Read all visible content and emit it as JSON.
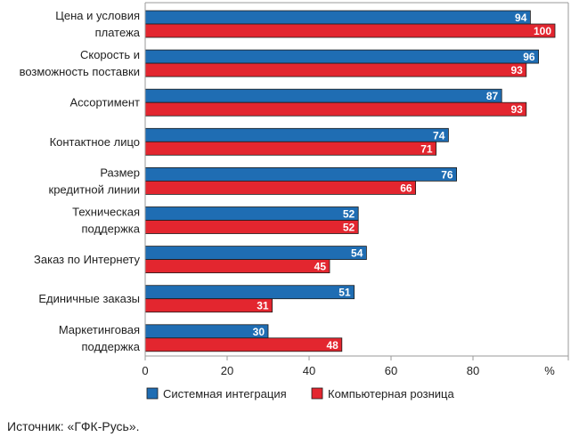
{
  "chart_data": {
    "type": "bar",
    "orientation": "horizontal",
    "categories": [
      [
        "Цена и условия",
        "платежа"
      ],
      [
        "Скорость и",
        "возможность поставки"
      ],
      [
        "Ассортимент"
      ],
      [
        "Контактное лицо"
      ],
      [
        "Размер",
        "кредитной линии"
      ],
      [
        "Техническая",
        "поддержка"
      ],
      [
        "Заказ по Интернету"
      ],
      [
        "Единичные заказы"
      ],
      [
        "Маркетинговая",
        "поддержка"
      ]
    ],
    "series": [
      {
        "name": "Системная интеграция",
        "color": "#1f6db3",
        "values": [
          94,
          96,
          87,
          74,
          76,
          52,
          54,
          51,
          30
        ]
      },
      {
        "name": "Компьютерная розница",
        "color": "#e3262f",
        "values": [
          100,
          93,
          93,
          71,
          66,
          52,
          45,
          31,
          48
        ]
      }
    ],
    "xlim": [
      0,
      100
    ],
    "xticks": [
      "0",
      "20",
      "40",
      "60",
      "80"
    ],
    "unit_label": "%",
    "grid": false,
    "legend_position": "bottom"
  },
  "source": "Источник: «ГФК-Русь»."
}
